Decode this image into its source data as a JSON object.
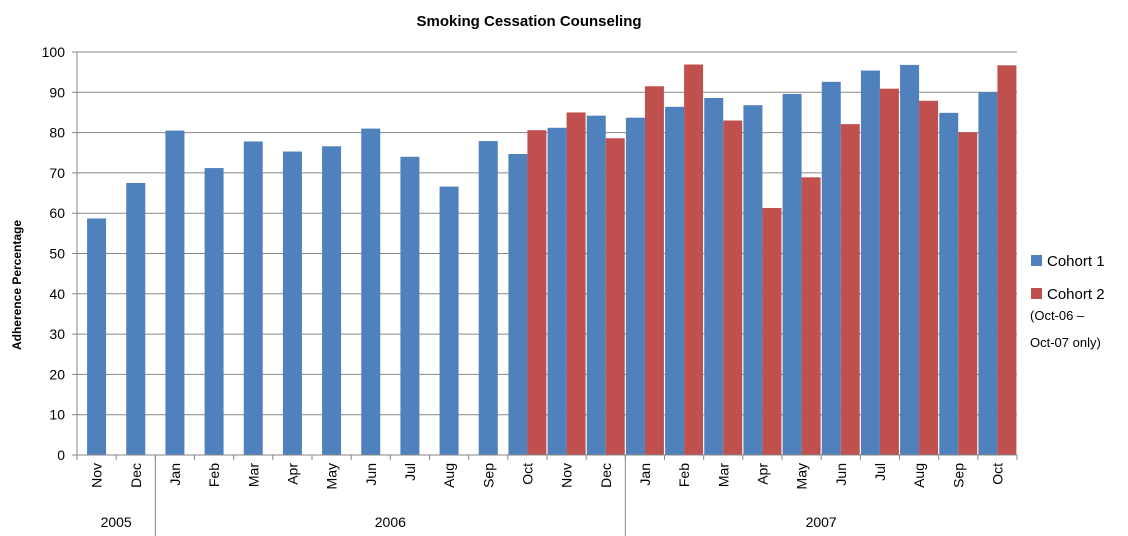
{
  "chart_data": {
    "type": "bar",
    "title": "Smoking Cessation Counseling",
    "xlabel": "",
    "ylabel": "Adherence Percentage",
    "ylim": [
      0,
      100
    ],
    "yticks": [
      0,
      10,
      20,
      30,
      40,
      50,
      60,
      70,
      80,
      90,
      100
    ],
    "grid": true,
    "legend_position": "right",
    "categories": [
      "Nov",
      "Dec",
      "Jan",
      "Feb",
      "Mar",
      "Apr",
      "May",
      "Jun",
      "Jul",
      "Aug",
      "Sep",
      "Oct",
      "Nov",
      "Dec",
      "Jan",
      "Feb",
      "Mar",
      "Apr",
      "May",
      "Jun",
      "Jul",
      "Aug",
      "Sep",
      "Oct"
    ],
    "year_groups": [
      {
        "label": "2005",
        "start": 0,
        "end": 1
      },
      {
        "label": "2006",
        "start": 2,
        "end": 13
      },
      {
        "label": "2007",
        "start": 14,
        "end": 23
      }
    ],
    "series": [
      {
        "name": "Cohort 1",
        "color": "#4F81BD",
        "values": [
          58.7,
          67.5,
          80.5,
          71.2,
          77.8,
          75.3,
          76.6,
          81.0,
          74.0,
          66.6,
          77.9,
          74.7,
          81.2,
          84.2,
          83.7,
          86.4,
          88.6,
          86.8,
          89.6,
          92.6,
          95.4,
          96.8,
          84.9,
          90.0
        ]
      },
      {
        "name": "Cohort 2",
        "color": "#C0504D",
        "values": [
          null,
          null,
          null,
          null,
          null,
          null,
          null,
          null,
          null,
          null,
          null,
          80.6,
          85.0,
          78.6,
          91.5,
          96.9,
          83.0,
          61.3,
          68.9,
          82.1,
          90.9,
          87.9,
          80.1,
          96.7
        ]
      }
    ],
    "legend": {
      "items": [
        "Cohort 1",
        "Cohort 2"
      ],
      "note_line1": "(Oct-06 –",
      "note_line2": "Oct-07 only)"
    }
  }
}
